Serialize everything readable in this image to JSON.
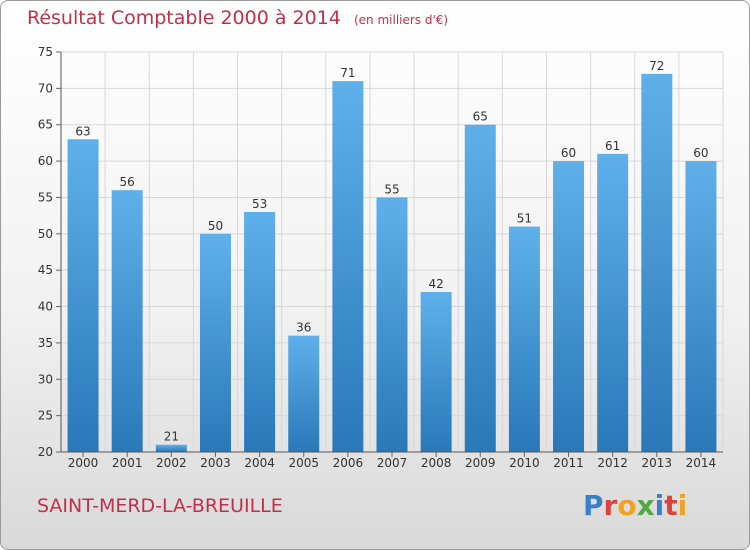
{
  "header": {
    "title": "Résultat Comptable 2000 à 2014",
    "unit": "(en milliers d'€)"
  },
  "footer": {
    "place": "SAINT-MERD-LA-BREUILLE",
    "brand": "Proxiti",
    "brand_letter_colors": [
      "#3a7fc8",
      "#d9433b",
      "#f0a323",
      "#52a843",
      "#3a7fc8",
      "#d9433b",
      "#f0a323"
    ]
  },
  "colors": {
    "bar_top": "#5fb0ea",
    "bar_bottom": "#2a78b8",
    "grid": "#d8d8d8",
    "text_accent": "#c0304a"
  },
  "chart_data": {
    "type": "bar",
    "title": "Résultat Comptable 2000 à 2014",
    "subtitle": "(en milliers d'€)",
    "categories": [
      "2000",
      "2001",
      "2002",
      "2003",
      "2004",
      "2005",
      "2006",
      "2007",
      "2008",
      "2009",
      "2010",
      "2011",
      "2012",
      "2013",
      "2014"
    ],
    "values": [
      63,
      56,
      21,
      50,
      53,
      36,
      71,
      55,
      42,
      65,
      51,
      60,
      61,
      72,
      60
    ],
    "ylim": [
      20,
      75
    ],
    "yticks": [
      20,
      25,
      30,
      35,
      40,
      45,
      50,
      55,
      60,
      65,
      70,
      75
    ],
    "grid": true,
    "data_labels": true
  }
}
